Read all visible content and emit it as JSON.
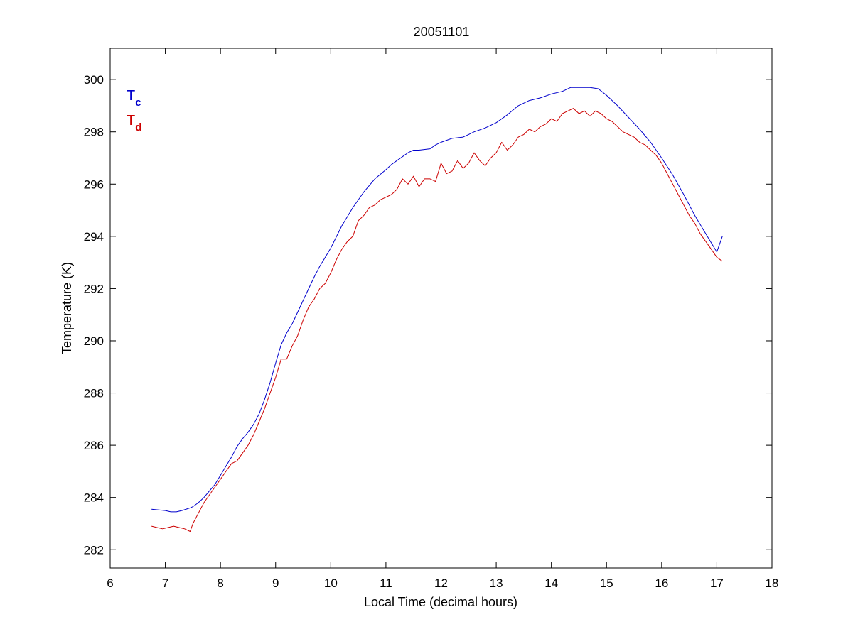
{
  "chart_data": {
    "type": "line",
    "title": "20051101",
    "xlabel": "Local Time (decimal hours)",
    "ylabel": "Temperature (K)",
    "xlim": [
      6,
      18
    ],
    "ylim": [
      281.3,
      301.2
    ],
    "xticks": [
      6,
      7,
      8,
      9,
      10,
      11,
      12,
      13,
      14,
      15,
      16,
      17,
      18
    ],
    "yticks": [
      282,
      284,
      286,
      288,
      290,
      292,
      294,
      296,
      298,
      300
    ],
    "grid": false,
    "legend": {
      "placement": "top-left"
    },
    "series": [
      {
        "name": "Tc",
        "label_main": "T",
        "label_sub": "c",
        "color": "#0000cc",
        "x": [
          6.75,
          7.0,
          7.1,
          7.2,
          7.3,
          7.45,
          7.5,
          7.6,
          7.7,
          7.8,
          7.9,
          8.0,
          8.1,
          8.2,
          8.3,
          8.4,
          8.5,
          8.6,
          8.7,
          8.8,
          8.9,
          9.0,
          9.1,
          9.2,
          9.3,
          9.4,
          9.5,
          9.6,
          9.7,
          9.8,
          9.9,
          10.0,
          10.2,
          10.4,
          10.6,
          10.8,
          11.0,
          11.1,
          11.2,
          11.3,
          11.4,
          11.5,
          11.6,
          11.8,
          11.9,
          12.0,
          12.2,
          12.4,
          12.5,
          12.6,
          12.8,
          13.0,
          13.2,
          13.4,
          13.6,
          13.8,
          14.0,
          14.2,
          14.35,
          14.5,
          14.7,
          14.85,
          15.0,
          15.2,
          15.4,
          15.6,
          15.8,
          16.0,
          16.2,
          16.4,
          16.6,
          16.8,
          17.0,
          17.1
        ],
        "y": [
          283.55,
          283.5,
          283.45,
          283.45,
          283.5,
          283.6,
          283.65,
          283.8,
          284.0,
          284.25,
          284.5,
          284.85,
          285.2,
          285.55,
          285.95,
          286.25,
          286.5,
          286.8,
          287.2,
          287.75,
          288.4,
          289.15,
          289.85,
          290.3,
          290.65,
          291.1,
          291.55,
          292.0,
          292.45,
          292.85,
          293.2,
          293.55,
          294.4,
          295.1,
          295.7,
          296.2,
          296.55,
          296.75,
          296.9,
          297.05,
          297.2,
          297.3,
          297.3,
          297.35,
          297.5,
          297.6,
          297.75,
          297.8,
          297.9,
          298.0,
          298.15,
          298.35,
          298.65,
          299.0,
          299.2,
          299.3,
          299.45,
          299.55,
          299.7,
          299.7,
          299.7,
          299.65,
          299.4,
          299.0,
          298.55,
          298.1,
          297.6,
          297.0,
          296.35,
          295.6,
          294.8,
          294.1,
          293.4,
          294.0
        ]
      },
      {
        "name": "Td",
        "label_main": "T",
        "label_sub": "d",
        "color": "#cc0000",
        "x": [
          6.75,
          6.85,
          6.95,
          7.05,
          7.15,
          7.25,
          7.35,
          7.45,
          7.5,
          7.6,
          7.7,
          7.8,
          7.9,
          8.0,
          8.1,
          8.2,
          8.3,
          8.4,
          8.5,
          8.6,
          8.7,
          8.8,
          8.9,
          9.0,
          9.1,
          9.2,
          9.3,
          9.4,
          9.5,
          9.6,
          9.7,
          9.8,
          9.9,
          10.0,
          10.1,
          10.2,
          10.3,
          10.4,
          10.5,
          10.6,
          10.7,
          10.8,
          10.9,
          11.0,
          11.1,
          11.2,
          11.3,
          11.4,
          11.5,
          11.6,
          11.7,
          11.8,
          11.9,
          12.0,
          12.1,
          12.2,
          12.3,
          12.4,
          12.5,
          12.6,
          12.7,
          12.8,
          12.9,
          13.0,
          13.1,
          13.2,
          13.3,
          13.4,
          13.5,
          13.6,
          13.7,
          13.8,
          13.9,
          14.0,
          14.1,
          14.2,
          14.3,
          14.4,
          14.5,
          14.6,
          14.7,
          14.8,
          14.9,
          15.0,
          15.1,
          15.2,
          15.3,
          15.4,
          15.5,
          15.6,
          15.7,
          15.8,
          15.9,
          16.0,
          16.1,
          16.2,
          16.3,
          16.4,
          16.5,
          16.6,
          16.7,
          16.8,
          16.9,
          17.0,
          17.1
        ],
        "y": [
          282.9,
          282.85,
          282.8,
          282.85,
          282.9,
          282.85,
          282.8,
          282.7,
          283.0,
          283.4,
          283.8,
          284.1,
          284.4,
          284.7,
          285.0,
          285.3,
          285.4,
          285.7,
          286.0,
          286.4,
          286.9,
          287.4,
          288.0,
          288.6,
          289.3,
          289.3,
          289.8,
          290.2,
          290.8,
          291.3,
          291.6,
          292.0,
          292.2,
          292.6,
          293.1,
          293.5,
          293.8,
          294.0,
          294.6,
          294.8,
          295.1,
          295.2,
          295.4,
          295.5,
          295.6,
          295.8,
          296.2,
          296.0,
          296.3,
          295.9,
          296.2,
          296.2,
          296.1,
          296.8,
          296.4,
          296.5,
          296.9,
          296.6,
          296.8,
          297.2,
          296.9,
          296.7,
          297.0,
          297.2,
          297.6,
          297.3,
          297.5,
          297.8,
          297.9,
          298.1,
          298.0,
          298.2,
          298.3,
          298.5,
          298.4,
          298.7,
          298.8,
          298.9,
          298.7,
          298.8,
          298.6,
          298.8,
          298.7,
          298.5,
          298.4,
          298.2,
          298.0,
          297.9,
          297.8,
          297.6,
          297.5,
          297.3,
          297.1,
          296.8,
          296.4,
          296.0,
          295.6,
          295.2,
          294.8,
          294.5,
          294.1,
          293.8,
          293.5,
          293.2,
          293.05
        ]
      }
    ]
  }
}
